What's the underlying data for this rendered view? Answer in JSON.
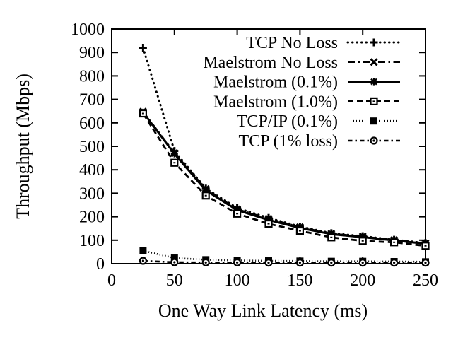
{
  "figure": {
    "background": "#ffffff",
    "ink_color": "#000000"
  },
  "chart_data": {
    "type": "line",
    "title": "",
    "xlabel": "One Way Link Latency (ms)",
    "ylabel": "Throughput (Mbps)",
    "xlim": [
      0,
      250
    ],
    "ylim": [
      0,
      1000
    ],
    "xticks": [
      0,
      50,
      100,
      150,
      200,
      250
    ],
    "yticks": [
      0,
      100,
      200,
      300,
      400,
      500,
      600,
      700,
      800,
      900,
      1000
    ],
    "grid": false,
    "legend_position": "top-right-inside",
    "x": [
      25,
      50,
      75,
      100,
      125,
      150,
      175,
      200,
      225,
      250
    ],
    "series": [
      {
        "name": "TCP No Loss",
        "line_style": "dotted",
        "marker": "plus",
        "values": [
          920,
          480,
          320,
          237,
          195,
          158,
          130,
          117,
          102,
          88
        ]
      },
      {
        "name": "Maelstrom No Loss",
        "line_style": "dash-dot",
        "marker": "cross",
        "values": [
          648,
          472,
          318,
          232,
          192,
          156,
          128,
          116,
          101,
          87
        ]
      },
      {
        "name": "Maelstrom (0.1%)",
        "line_style": "solid",
        "marker": "star",
        "values": [
          645,
          468,
          312,
          228,
          186,
          152,
          126,
          113,
          99,
          85
        ]
      },
      {
        "name": "Maelstrom (1.0%)",
        "line_style": "dashed",
        "marker": "open-square",
        "values": [
          640,
          430,
          290,
          213,
          170,
          140,
          112,
          97,
          91,
          76
        ]
      },
      {
        "name": "TCP/IP (0.1%)",
        "line_style": "fine-dotted",
        "marker": "filled-square",
        "values": [
          55,
          24,
          17,
          14,
          12,
          11,
          10,
          10,
          9,
          8
        ]
      },
      {
        "name": "TCP (1% loss)",
        "line_style": "dash-dot-short",
        "marker": "circle-dot",
        "values": [
          12,
          6,
          5,
          5,
          4,
          4,
          4,
          4,
          4,
          4
        ]
      }
    ]
  }
}
